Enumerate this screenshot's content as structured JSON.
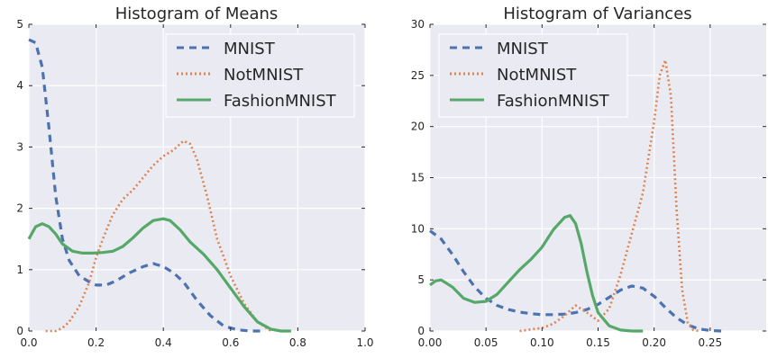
{
  "chart_data": [
    {
      "type": "line",
      "title": "Histogram of Means",
      "xlabel": "",
      "ylabel": "",
      "xlim": [
        0.0,
        1.0
      ],
      "ylim": [
        0,
        5
      ],
      "xticks": [
        0.0,
        0.2,
        0.4,
        0.6,
        0.8,
        1.0
      ],
      "xtick_labels": [
        "0.0",
        "0.2",
        "0.4",
        "0.6",
        "0.8",
        "1.0"
      ],
      "yticks": [
        0,
        1,
        2,
        3,
        4,
        5
      ],
      "ytick_labels": [
        "0",
        "1",
        "2",
        "3",
        "4",
        "5"
      ],
      "grid": true,
      "legend_position": "top-right",
      "series": [
        {
          "name": "MNIST",
          "color": "#4c72b0",
          "style": "dashed",
          "x": [
            0.0,
            0.02,
            0.04,
            0.06,
            0.08,
            0.1,
            0.12,
            0.15,
            0.18,
            0.2,
            0.23,
            0.26,
            0.3,
            0.34,
            0.37,
            0.4,
            0.43,
            0.46,
            0.5,
            0.54,
            0.58,
            0.62,
            0.66,
            0.7
          ],
          "y": [
            4.75,
            4.7,
            4.3,
            3.3,
            2.2,
            1.5,
            1.15,
            0.9,
            0.8,
            0.75,
            0.75,
            0.82,
            0.95,
            1.05,
            1.1,
            1.05,
            0.95,
            0.8,
            0.5,
            0.25,
            0.08,
            0.02,
            0.0,
            0.0
          ]
        },
        {
          "name": "NotMNIST",
          "color": "#dd8452",
          "style": "dotted",
          "x": [
            0.05,
            0.08,
            0.1,
            0.12,
            0.15,
            0.18,
            0.2,
            0.22,
            0.25,
            0.28,
            0.31,
            0.34,
            0.37,
            0.4,
            0.43,
            0.46,
            0.48,
            0.5,
            0.53,
            0.56,
            0.6,
            0.64,
            0.68,
            0.72
          ],
          "y": [
            0.0,
            0.0,
            0.05,
            0.15,
            0.4,
            0.8,
            1.2,
            1.5,
            1.9,
            2.15,
            2.3,
            2.5,
            2.7,
            2.85,
            2.95,
            3.1,
            3.05,
            2.8,
            2.2,
            1.5,
            0.9,
            0.45,
            0.15,
            0.0
          ]
        },
        {
          "name": "FashionMNIST",
          "color": "#55a868",
          "style": "solid",
          "x": [
            0.0,
            0.02,
            0.04,
            0.06,
            0.08,
            0.1,
            0.13,
            0.16,
            0.19,
            0.22,
            0.25,
            0.28,
            0.31,
            0.34,
            0.37,
            0.4,
            0.42,
            0.45,
            0.48,
            0.52,
            0.56,
            0.6,
            0.64,
            0.68,
            0.72,
            0.75,
            0.78
          ],
          "y": [
            1.5,
            1.7,
            1.75,
            1.7,
            1.58,
            1.42,
            1.3,
            1.27,
            1.27,
            1.28,
            1.3,
            1.38,
            1.52,
            1.68,
            1.8,
            1.83,
            1.8,
            1.65,
            1.45,
            1.25,
            1.0,
            0.7,
            0.4,
            0.15,
            0.03,
            0.0,
            0.0
          ]
        }
      ]
    },
    {
      "type": "line",
      "title": "Histogram of Variances",
      "xlabel": "",
      "ylabel": "",
      "xlim": [
        0.0,
        0.3
      ],
      "ylim": [
        0,
        30
      ],
      "xticks": [
        0.0,
        0.05,
        0.1,
        0.15,
        0.2,
        0.25
      ],
      "xtick_labels": [
        "0.00",
        "0.05",
        "0.10",
        "0.15",
        "0.20",
        "0.25"
      ],
      "yticks": [
        0,
        5,
        10,
        15,
        20,
        25,
        30
      ],
      "ytick_labels": [
        "0",
        "5",
        "10",
        "15",
        "20",
        "25",
        "30"
      ],
      "grid": true,
      "legend_position": "top-left",
      "series": [
        {
          "name": "MNIST",
          "color": "#4c72b0",
          "style": "dashed",
          "x": [
            0.0,
            0.01,
            0.02,
            0.03,
            0.04,
            0.05,
            0.06,
            0.07,
            0.08,
            0.09,
            0.1,
            0.11,
            0.12,
            0.13,
            0.14,
            0.15,
            0.16,
            0.17,
            0.18,
            0.19,
            0.2,
            0.21,
            0.22,
            0.23,
            0.24,
            0.25,
            0.26
          ],
          "y": [
            9.8,
            9.0,
            7.5,
            5.8,
            4.3,
            3.2,
            2.5,
            2.1,
            1.85,
            1.7,
            1.6,
            1.6,
            1.65,
            1.8,
            2.1,
            2.6,
            3.3,
            4.0,
            4.4,
            4.2,
            3.4,
            2.3,
            1.3,
            0.6,
            0.2,
            0.05,
            0.0
          ]
        },
        {
          "name": "NotMNIST",
          "color": "#dd8452",
          "style": "dotted",
          "x": [
            0.08,
            0.1,
            0.11,
            0.12,
            0.13,
            0.14,
            0.15,
            0.16,
            0.17,
            0.18,
            0.19,
            0.2,
            0.205,
            0.21,
            0.215,
            0.22,
            0.225,
            0.23,
            0.235,
            0.24
          ],
          "y": [
            0.0,
            0.3,
            0.7,
            1.5,
            2.5,
            1.8,
            1.0,
            2.2,
            5.5,
            9.5,
            13.5,
            20.5,
            25.0,
            26.5,
            23.0,
            12.0,
            4.0,
            0.8,
            0.1,
            0.0
          ]
        },
        {
          "name": "FashionMNIST",
          "color": "#55a868",
          "style": "solid",
          "x": [
            0.0,
            0.005,
            0.01,
            0.02,
            0.03,
            0.04,
            0.05,
            0.06,
            0.07,
            0.08,
            0.09,
            0.1,
            0.11,
            0.12,
            0.125,
            0.13,
            0.135,
            0.14,
            0.145,
            0.15,
            0.16,
            0.17,
            0.18,
            0.19
          ],
          "y": [
            4.5,
            4.9,
            5.0,
            4.3,
            3.2,
            2.8,
            2.9,
            3.6,
            4.8,
            6.0,
            7.0,
            8.2,
            9.9,
            11.1,
            11.3,
            10.5,
            8.5,
            5.8,
            3.5,
            1.8,
            0.5,
            0.1,
            0.0,
            0.0
          ]
        }
      ]
    }
  ]
}
